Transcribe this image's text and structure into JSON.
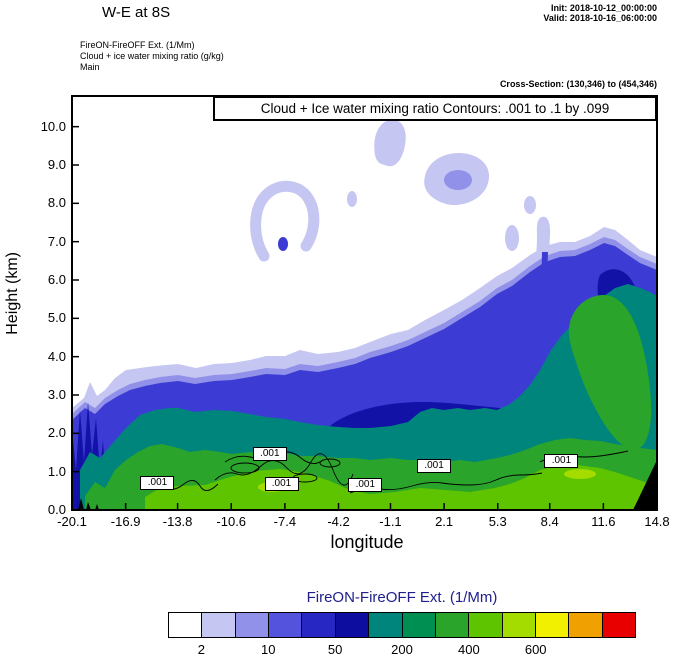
{
  "header": {
    "title": "W-E at 8S",
    "init": "Init: 2018-10-12_00:00:00",
    "valid": "Valid: 2018-10-16_06:00:00",
    "line1": "FireON-FireOFF Ext.  (1/Mm)",
    "line2": "Cloud + ice water mixing ratio  (g/kg)",
    "line3": "Main",
    "cross_section": "Cross-Section: (130,346) to (454,346)"
  },
  "chart_data": {
    "type": "heatmap",
    "subtype": "filled_contour_vertical_cross_section",
    "title": "Cloud + Ice water mixing ratio Contours: .001 to .1 by .099",
    "xlabel": "longitude",
    "ylabel": "Height (km)",
    "xlim": [
      -20.1,
      14.8
    ],
    "ylim": [
      0,
      10.8
    ],
    "grid": false,
    "x_ticks": [
      "-20.1",
      "-16.9",
      "-13.8",
      "-10.6",
      "-7.4",
      "-4.2",
      "-1.1",
      "2.1",
      "5.3",
      "8.4",
      "11.6",
      "14.8"
    ],
    "x_tick_values": [
      -20.1,
      -16.9,
      -13.8,
      -10.6,
      -7.4,
      -4.2,
      -1.1,
      2.1,
      5.3,
      8.4,
      11.6,
      14.8
    ],
    "y_ticks": [
      "0.0",
      "1.0",
      "2.0",
      "3.0",
      "4.0",
      "5.0",
      "6.0",
      "7.0",
      "8.0",
      "9.0",
      "10.0"
    ],
    "y_tick_values": [
      0,
      1,
      2,
      3,
      4,
      5,
      6,
      7,
      8,
      9,
      10
    ],
    "contour_line_labels": [
      {
        "text": ".001",
        "lon": -15.0,
        "km": 0.7
      },
      {
        "text": ".001",
        "lon": -8.3,
        "km": 1.45
      },
      {
        "text": ".001",
        "lon": -7.6,
        "km": 0.68
      },
      {
        "text": ".001",
        "lon": -2.6,
        "km": 0.65
      },
      {
        "text": ".001",
        "lon": 1.5,
        "km": 1.15
      },
      {
        "text": ".001",
        "lon": 9.1,
        "km": 1.28
      }
    ],
    "field_estimate": {
      "note": "Approximate top height (km) of shaded FireON-FireOFF extinction field vs longitude, read from plot",
      "longitude": [
        -20.1,
        -18,
        -16,
        -14,
        -12,
        -10,
        -8,
        -6,
        -4,
        -2,
        0,
        2,
        4,
        6,
        8,
        10,
        12,
        14,
        14.8
      ],
      "top_height_km": [
        2.4,
        3.3,
        3.6,
        3.8,
        3.8,
        3.9,
        4.0,
        4.1,
        4.3,
        4.6,
        5.0,
        5.4,
        5.9,
        6.4,
        7.0,
        7.2,
        7.4,
        6.8,
        6.6
      ],
      "detached_patches": [
        {
          "lon_range": [
            -1.6,
            0.0
          ],
          "km_range": [
            9.2,
            10.3
          ]
        },
        {
          "lon_range": [
            -8.5,
            -4.8
          ],
          "km_range": [
            6.5,
            8.6
          ],
          "shape": "open ring"
        },
        {
          "lon_range": [
            0.9,
            5.0
          ],
          "km_range": [
            7.9,
            9.4
          ]
        },
        {
          "lon_range": [
            7.6,
            9.2
          ],
          "km_range": [
            4.7,
            7.8
          ],
          "shape": "vertical streaks"
        }
      ]
    },
    "colorbar": {
      "title": "FireON-FireOFF Ext.  (1/Mm)",
      "colors": [
        "#ffffff",
        "#c6c6f3",
        "#9191ea",
        "#5353dd",
        "#2727c4",
        "#0d0da0",
        "#00857d",
        "#008f52",
        "#2aa42a",
        "#5ec400",
        "#a5dc00",
        "#f0f000",
        "#f0a000",
        "#e80000"
      ],
      "tick_labels": [
        "2",
        "10",
        "50",
        "200",
        "400",
        "600"
      ],
      "tick_boundaries": [
        1,
        3,
        5,
        7,
        9,
        11
      ]
    },
    "palette_in_plot": {
      "lavender": "#c6c6f3",
      "periwinkle": "#9191ea",
      "blue": "#3c3cd4",
      "dark_blue": "#1212a6",
      "teal": "#00857d",
      "green": "#2aa42a",
      "bright_green": "#5ec400",
      "yellow_green": "#a5dc00",
      "terrain": "#000000"
    }
  }
}
